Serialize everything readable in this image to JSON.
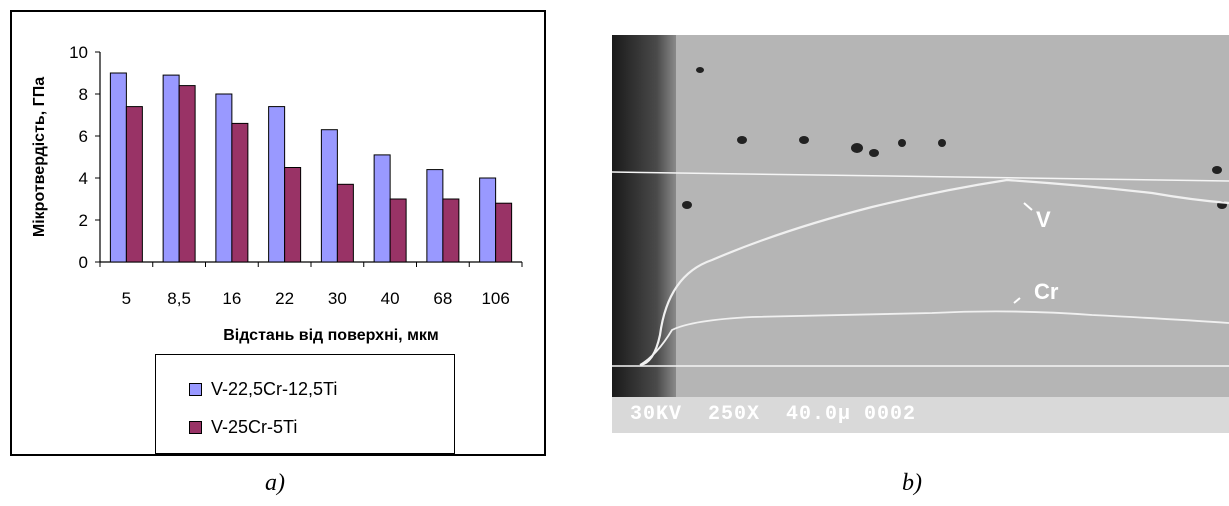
{
  "chart_data": {
    "type": "bar",
    "categories": [
      "5",
      "8,5",
      "16",
      "22",
      "30",
      "40",
      "68",
      "106"
    ],
    "series": [
      {
        "name": "V-22,5Cr-12,5Ti",
        "values": [
          9.0,
          8.9,
          8.0,
          7.4,
          6.3,
          5.1,
          4.4,
          4.0
        ],
        "color": "#9999ff"
      },
      {
        "name": "V-25Cr-5Ti",
        "values": [
          7.4,
          8.4,
          6.6,
          4.5,
          3.7,
          3.0,
          3.0,
          2.8
        ],
        "color": "#993366"
      }
    ],
    "ylabel": "Мікротвердість, ГПа",
    "xlabel": "Відстань від поверхні, мкм",
    "ylim": [
      0,
      10
    ],
    "yticks": [
      "0",
      "2",
      "4",
      "6",
      "8",
      "10"
    ],
    "grid": false,
    "legend": "bottom"
  },
  "captions": {
    "left": "a)",
    "right": "b)"
  },
  "micrograph": {
    "info_bar": "30KV  250X  40.0µ 0002",
    "label_v": "V",
    "label_cr": "Cr"
  }
}
